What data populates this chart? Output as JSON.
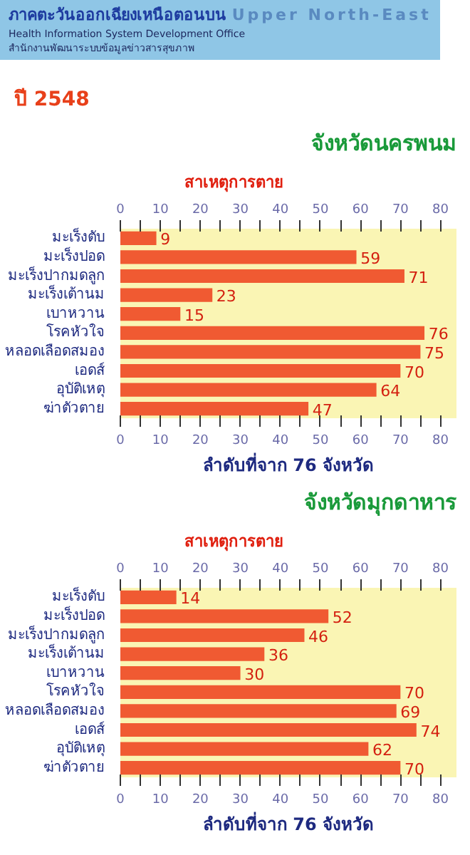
{
  "chart_data": [
    {
      "type": "bar",
      "orientation": "horizontal",
      "title": "จังหวัดนครพนม",
      "subtitle": "ปี 2548",
      "annotations": [
        "ภาคตะวันออกเฉียงเหนือตอนบน",
        "Upper North-East",
        "Health Information System Development Office",
        "สำนักงานพัฒนาระบบข้อมูลข่าวสารสุขภาพ"
      ],
      "ylabel": "สาเหตุการตาย",
      "xlabel": "ลำดับที่จาก 76 จังหวัด",
      "categories": [
        "มะเร็งตับ",
        "มะเร็งปอด",
        "มะเร็งปากมดลูก",
        "มะเร็งเต้านม",
        "เบาหวาน",
        "โรคหัวใจ",
        "หลอดเลือดสมอง",
        "เอดส์",
        "อุบัติเหตุ",
        "ฆ่าตัวตาย"
      ],
      "values": [
        9,
        59,
        71,
        23,
        15,
        76,
        75,
        70,
        64,
        47
      ],
      "color": "#f05a32",
      "data_labels": true,
      "xlim": [
        0,
        84
      ],
      "xticks": [
        0,
        {
          "value": 5,
          "label": null
        },
        10,
        {
          "value": 15,
          "label": null
        },
        20,
        {
          "value": 25,
          "label": null
        },
        30,
        {
          "value": 35,
          "label": null
        },
        40,
        {
          "value": 45,
          "label": null
        },
        50,
        {
          "value": 55,
          "label": null
        },
        60,
        {
          "value": 65,
          "label": null
        },
        70,
        {
          "value": 75,
          "label": null
        },
        80
      ],
      "x2lim": [
        0,
        84
      ],
      "x2ticks": [
        0,
        {
          "value": 5,
          "label": null
        },
        10,
        {
          "value": 15,
          "label": null
        },
        20,
        {
          "value": 25,
          "label": null
        },
        30,
        {
          "value": 35,
          "label": null
        },
        40,
        {
          "value": 45,
          "label": null
        },
        50,
        {
          "value": 55,
          "label": null
        },
        60,
        {
          "value": 65,
          "label": null
        },
        70,
        {
          "value": 75,
          "label": null
        },
        80
      ],
      "grid": false
    },
    {
      "type": "bar",
      "orientation": "horizontal",
      "title": "จังหวัดมุกดาหาร",
      "ylabel": "สาเหตุการตาย",
      "xlabel": "ลำดับที่จาก 76 จังหวัด",
      "categories": [
        "มะเร็งตับ",
        "มะเร็งปอด",
        "มะเร็งปากมดลูก",
        "มะเร็งเต้านม",
        "เบาหวาน",
        "โรคหัวใจ",
        "หลอดเลือดสมอง",
        "เอดส์",
        "อุบัติเหตุ",
        "ฆ่าตัวตาย"
      ],
      "values": [
        14,
        52,
        46,
        36,
        30,
        70,
        69,
        74,
        62,
        70
      ],
      "color": "#f05a32",
      "data_labels": true,
      "xlim": [
        0,
        84
      ],
      "xticks": [
        0,
        {
          "value": 5,
          "label": null
        },
        10,
        {
          "value": 15,
          "label": null
        },
        20,
        {
          "value": 25,
          "label": null
        },
        30,
        {
          "value": 35,
          "label": null
        },
        40,
        {
          "value": 45,
          "label": null
        },
        50,
        {
          "value": 55,
          "label": null
        },
        60,
        {
          "value": 65,
          "label": null
        },
        70,
        {
          "value": 75,
          "label": null
        },
        80
      ],
      "x2lim": [
        0,
        84
      ],
      "x2ticks": [
        0,
        {
          "value": 5,
          "label": null
        },
        10,
        {
          "value": 15,
          "label": null
        },
        20,
        {
          "value": 25,
          "label": null
        },
        30,
        {
          "value": 35,
          "label": null
        },
        40,
        {
          "value": 45,
          "label": null
        },
        50,
        {
          "value": 55,
          "label": null
        },
        60,
        {
          "value": 65,
          "label": null
        },
        70,
        {
          "value": 75,
          "label": null
        },
        80
      ],
      "grid": false
    }
  ]
}
